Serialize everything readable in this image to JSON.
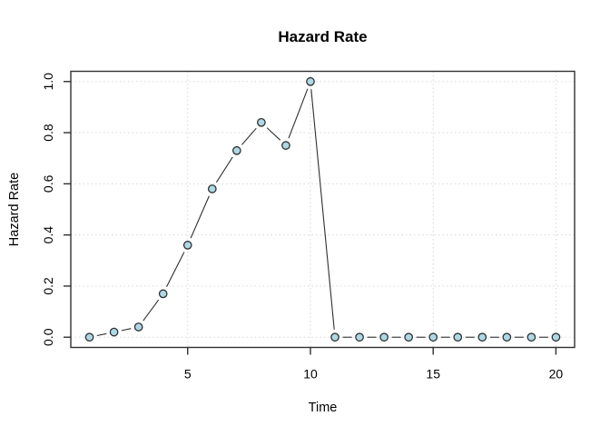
{
  "figure": {
    "background": "#ffffff"
  },
  "chart_data": {
    "type": "line",
    "style": "points-joined-by-segments-with-gaps",
    "title": "Hazard Rate",
    "xlabel": "Time",
    "ylabel": "Hazard Rate",
    "x": [
      1,
      2,
      3,
      4,
      5,
      6,
      7,
      8,
      9,
      10,
      11,
      12,
      13,
      14,
      15,
      16,
      17,
      18,
      19,
      20
    ],
    "y": [
      0.0,
      0.02,
      0.04,
      0.17,
      0.36,
      0.58,
      0.73,
      0.84,
      0.75,
      1.0,
      0.0,
      0.0,
      0.0,
      0.0,
      0.0,
      0.0,
      0.0,
      0.0,
      0.0,
      0.0
    ],
    "xlim": [
      1,
      20
    ],
    "ylim": [
      0.0,
      1.0
    ],
    "xticks": [
      5,
      10,
      15,
      20
    ],
    "xtick_labels": [
      "5",
      "10",
      "15",
      "20"
    ],
    "yticks": [
      0.0,
      0.2,
      0.4,
      0.6,
      0.8,
      1.0
    ],
    "ytick_labels": [
      "0.0",
      "0.2",
      "0.4",
      "0.6",
      "0.8",
      "1.0"
    ],
    "grid": "dotted",
    "legend": "none",
    "marker": "circle",
    "colors": {
      "marker_fill": "#ADD8E6",
      "marker_stroke": "#303030",
      "line": "#303030",
      "grid": "#d8d8d8",
      "box": "#303030",
      "text": "#000000"
    }
  }
}
